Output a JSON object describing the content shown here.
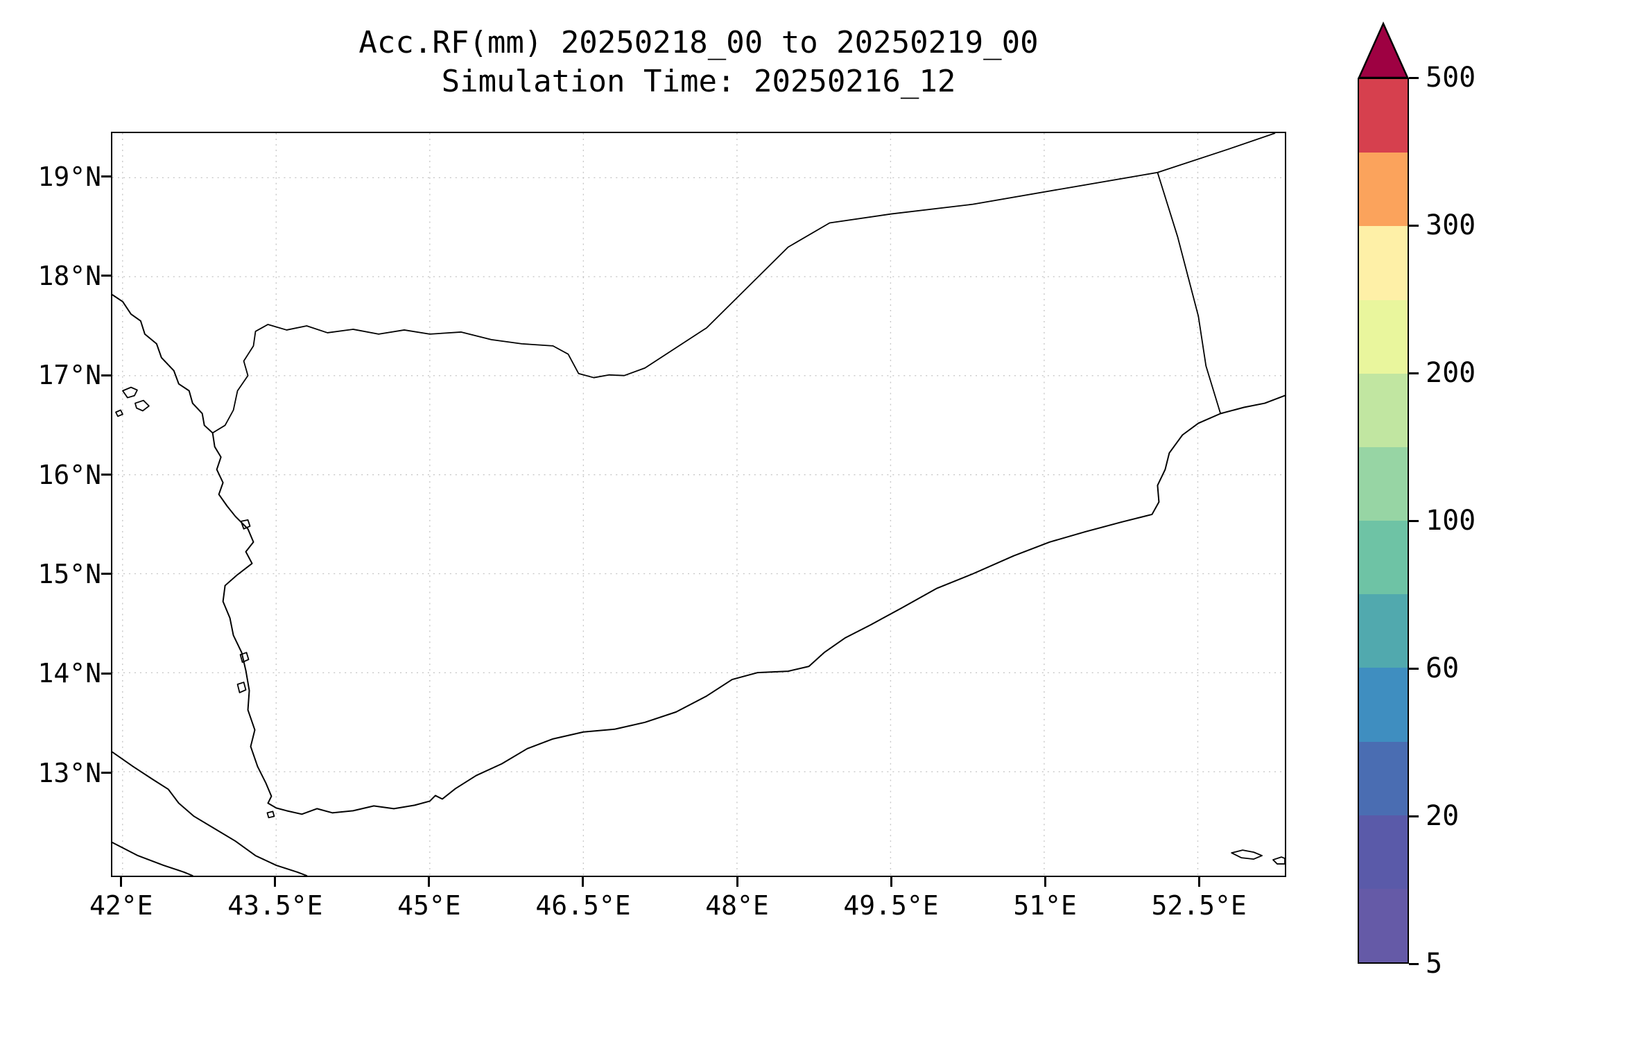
{
  "figure": {
    "title": "Acc.RF(mm) 20250218_00 to 20250219_00",
    "subtitle": "Simulation Time: 20250216_12"
  },
  "map": {
    "extent": {
      "lon_min": 41.9,
      "lon_max": 53.35,
      "lat_min": 11.95,
      "lat_max": 19.45
    },
    "x_ticks": [
      {
        "label": "42°E",
        "lon": 42
      },
      {
        "label": "43.5°E",
        "lon": 43.5
      },
      {
        "label": "45°E",
        "lon": 45
      },
      {
        "label": "46.5°E",
        "lon": 46.5
      },
      {
        "label": "48°E",
        "lon": 48
      },
      {
        "label": "49.5°E",
        "lon": 49.5
      },
      {
        "label": "51°E",
        "lon": 51
      },
      {
        "label": "52.5°E",
        "lon": 52.5
      }
    ],
    "y_ticks": [
      {
        "label": "19°N",
        "lat": 19
      },
      {
        "label": "18°N",
        "lat": 18
      },
      {
        "label": "17°N",
        "lat": 17
      },
      {
        "label": "16°N",
        "lat": 16
      },
      {
        "label": "15°N",
        "lat": 15
      },
      {
        "label": "14°N",
        "lat": 14
      },
      {
        "label": "13°N",
        "lat": 13
      }
    ],
    "region": "Yemen / southern Arabian Peninsula with coastlines and country borders",
    "shading": "none"
  },
  "colorbar": {
    "num_bands": 12,
    "tick_labels": [
      {
        "label": "5",
        "boundary": 0
      },
      {
        "label": "20",
        "boundary": 2
      },
      {
        "label": "60",
        "boundary": 4
      },
      {
        "label": "100",
        "boundary": 6
      },
      {
        "label": "200",
        "boundary": 8
      },
      {
        "label": "300",
        "boundary": 10
      },
      {
        "label": "500",
        "boundary": 12
      }
    ],
    "band_colors_bottom_to_top": [
      "#655aa7",
      "#5a5aa9",
      "#4a6db2",
      "#3f8ec0",
      "#51a9ae",
      "#6ec3a5",
      "#97d5a4",
      "#c1e6a1",
      "#e9f69d",
      "#fef0a7",
      "#fba35c",
      "#d6404e"
    ],
    "over_arrow_color": "#9e0142"
  }
}
